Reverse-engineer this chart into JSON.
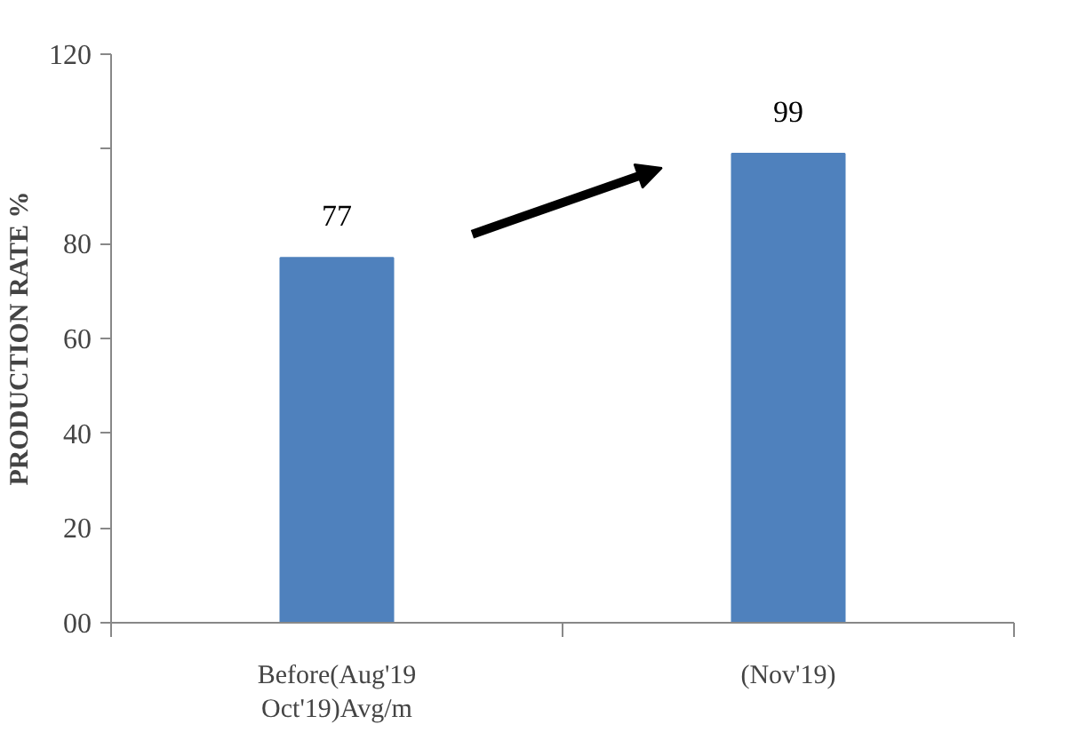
{
  "chart_data": {
    "type": "bar",
    "ylabel": "PRODUCTION RATE %",
    "categories": [
      "Before(Aug'19 Oct'19)Avg/m",
      "(Nov'19)"
    ],
    "values": [
      77,
      99
    ],
    "color": "#4f81bd",
    "data_labels": true,
    "ylim": [
      0,
      120
    ],
    "yticks": [
      {
        "value": 0,
        "label": "00"
      },
      20,
      40,
      60,
      80,
      {
        "value": 100,
        "label": null
      },
      120
    ],
    "grid": false
  }
}
